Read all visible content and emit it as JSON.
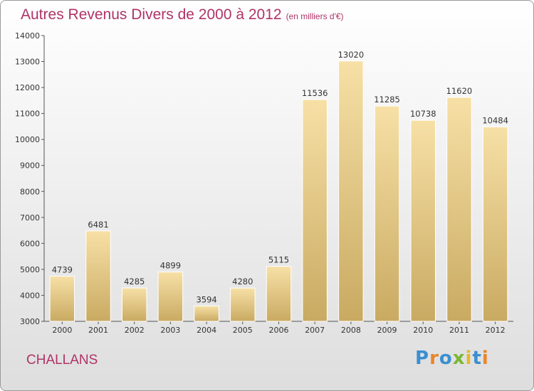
{
  "title": "Autres Revenus Divers de 2000 à 2012",
  "subtitle": "(en milliers d'€)",
  "city": "CHALLANS",
  "brand": {
    "text": "Proxiti",
    "colors": [
      "#3a8fd0",
      "#e8862a",
      "#3a8fd0",
      "#79b833",
      "#e6b82a",
      "#3a8fd0",
      "#e8862a"
    ]
  },
  "colors": {
    "title": "#b03366",
    "bar_top": "#f7e0a6",
    "bar_bottom": "#c9aa62"
  },
  "chart_data": {
    "type": "bar",
    "categories": [
      "2000",
      "2001",
      "2002",
      "2003",
      "2004",
      "2005",
      "2006",
      "2007",
      "2008",
      "2009",
      "2010",
      "2011",
      "2012"
    ],
    "values": [
      4739,
      6481,
      4285,
      4899,
      3594,
      4280,
      5115,
      11536,
      13020,
      11285,
      10738,
      11620,
      10484
    ],
    "ylim": [
      3000,
      14000
    ],
    "yticks": [
      3000,
      4000,
      5000,
      6000,
      7000,
      8000,
      9000,
      10000,
      11000,
      12000,
      13000,
      14000
    ],
    "title": "Autres Revenus Divers de 2000 à 2012",
    "xlabel": "",
    "ylabel": "",
    "grid": false,
    "data_labels": true
  }
}
